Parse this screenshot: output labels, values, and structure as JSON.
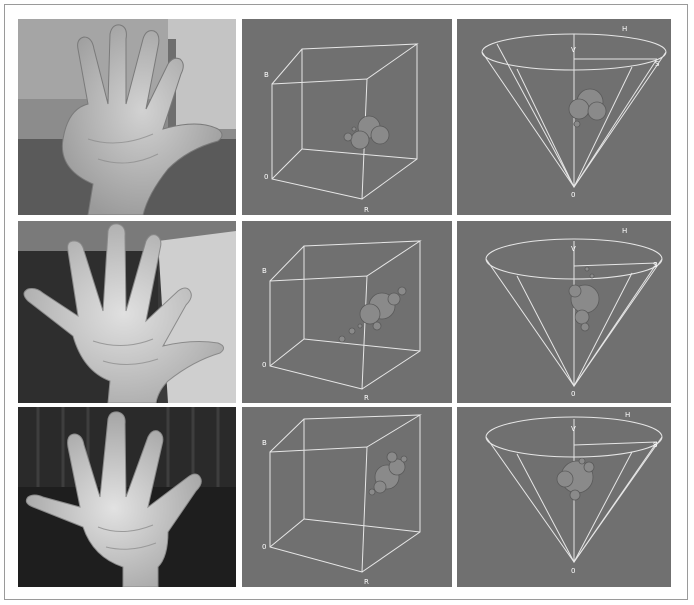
{
  "figure": {
    "rows": [
      {
        "photo": {
          "label": "hand-photo-indoor"
        },
        "rgb": {
          "axis_b": "B",
          "axis_origin": "0",
          "axis_r": "R"
        },
        "hsv": {
          "axis_h": "H",
          "axis_v": "V",
          "axis_s": "S",
          "axis_origin": "0"
        }
      },
      {
        "photo": {
          "label": "hand-photo-sidewalk"
        },
        "rgb": {
          "axis_b": "B",
          "axis_origin": "0",
          "axis_r": "R"
        },
        "hsv": {
          "axis_h": "H",
          "axis_v": "V",
          "axis_s": "S",
          "axis_origin": "0"
        }
      },
      {
        "photo": {
          "label": "hand-photo-fence"
        },
        "rgb": {
          "axis_b": "B",
          "axis_origin": "0",
          "axis_r": "R"
        },
        "hsv": {
          "axis_h": "H",
          "axis_v": "V",
          "axis_s": "S",
          "axis_origin": "0"
        }
      }
    ],
    "colors": {
      "panel_bg": "#707070",
      "line": "#e6e6e6",
      "blob": "#8a8a8a"
    }
  }
}
